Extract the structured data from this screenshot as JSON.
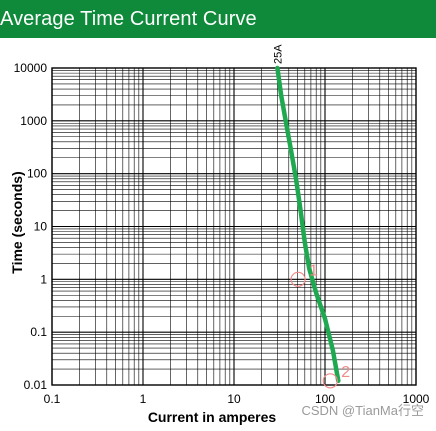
{
  "header": {
    "title": "Average Time Current Curve"
  },
  "watermark": "CSDN @TianMa行空",
  "colors": {
    "header_bg": "#0e8a3a",
    "curve": "#1ea84f",
    "annotation": "#f08a8a",
    "grid": "#000000"
  },
  "chart_data": {
    "type": "line",
    "title": "Average Time Current Curve",
    "xlabel": "Current in amperes",
    "ylabel": "Time (seconds)",
    "x_scale": "log",
    "y_scale": "log",
    "xlim": [
      0.1,
      1000
    ],
    "ylim": [
      0.01,
      10000
    ],
    "x_ticks": [
      "0.1",
      "1",
      "10",
      "100",
      "1000"
    ],
    "y_ticks": [
      "0.01",
      "0.1",
      "1",
      "10",
      "100",
      "1000",
      "10000"
    ],
    "grid": true,
    "series": [
      {
        "name": "25A",
        "x": [
          30,
          33,
          37,
          42,
          48,
          54,
          60,
          67,
          80,
          100,
          122,
          140
        ],
        "y": [
          10000,
          3000,
          1000,
          300,
          80,
          20,
          5,
          1.6,
          0.55,
          0.18,
          0.045,
          0.012
        ]
      }
    ],
    "annotations": [
      {
        "text": "1",
        "x": 62,
        "y": 1
      },
      {
        "text": "2",
        "x": 140,
        "y": 0.012
      }
    ]
  }
}
